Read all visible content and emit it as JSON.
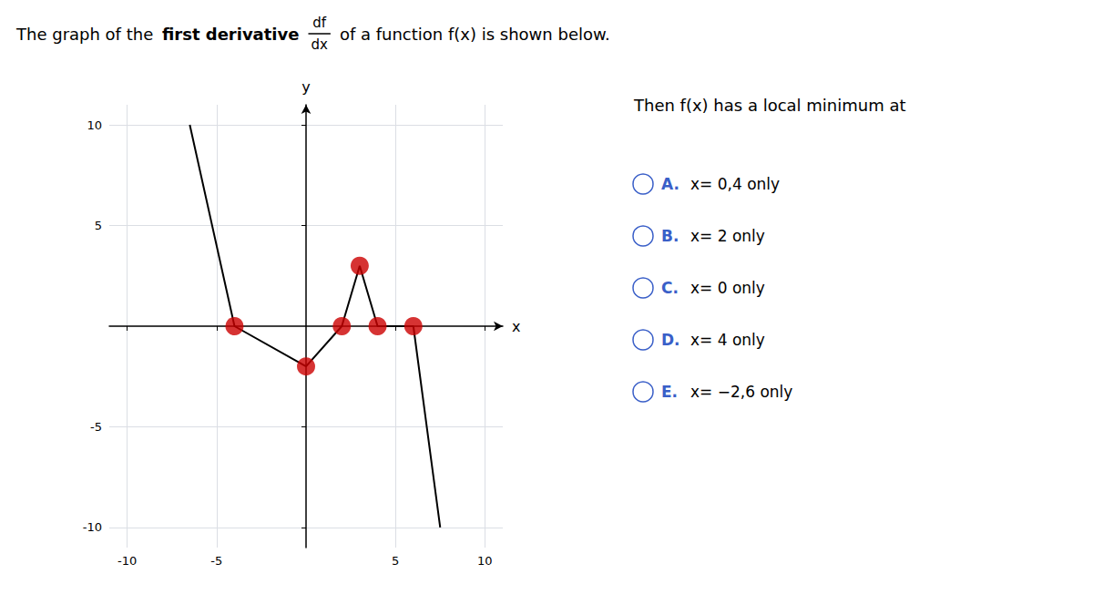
{
  "chart_data": {
    "type": "line",
    "title": [
      "The graph of the ",
      "first derivative",
      "df",
      "dx",
      "of a function f(x) is shown below."
    ],
    "xlabel": "x",
    "ylabel": "y",
    "xlim": [
      -11,
      11
    ],
    "ylim": [
      -11,
      11
    ],
    "xticks": [
      -10,
      -5,
      5,
      10
    ],
    "yticks": [
      -10,
      -5,
      5,
      10
    ],
    "grid": true,
    "series": [
      {
        "type": "line",
        "color": "#000000",
        "x": [
          -6.5,
          -4,
          0,
          2,
          3,
          4,
          6,
          7.5
        ],
        "values": [
          10,
          0,
          -2,
          0,
          3,
          0,
          0,
          -10
        ]
      },
      {
        "type": "scatter",
        "color": "#cc0000",
        "x": [
          -4,
          0,
          2,
          3,
          4,
          6
        ],
        "values": [
          0,
          -2,
          0,
          3,
          0,
          0
        ]
      }
    ],
    "annotations": [
      {
        "text": "Then f(x) has a local minimum at"
      },
      {
        "label": "A.",
        "text": "x= 0,4 only"
      },
      {
        "label": "B.",
        "text": "x= 2 only"
      },
      {
        "label": "C.",
        "text": "x= 0 only"
      },
      {
        "label": "D.",
        "text": "x= 4 only"
      },
      {
        "label": "E.",
        "text": "x= −2,6 only"
      }
    ]
  }
}
